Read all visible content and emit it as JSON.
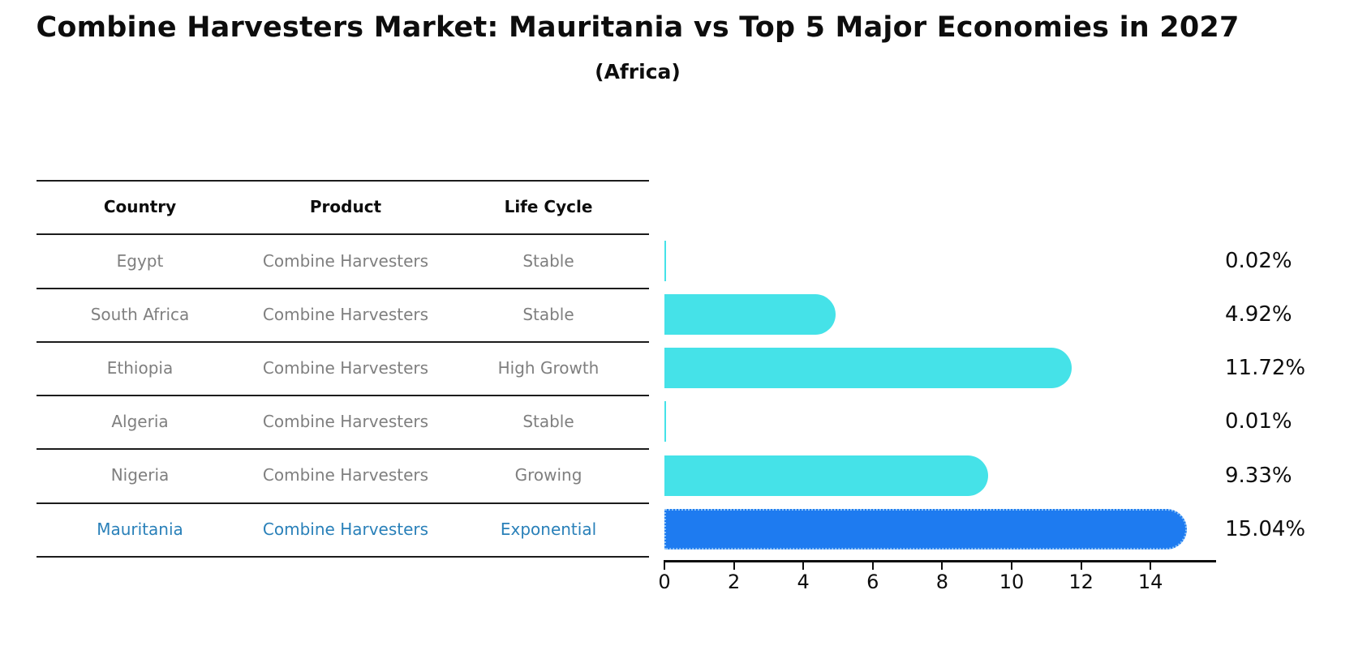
{
  "title": "Combine Harvesters Market: Mauritania vs Top 5 Major Economies in 2027",
  "subtitle": "(Africa)",
  "table": {
    "headers": [
      "Country",
      "Product",
      "Life Cycle"
    ],
    "rows": [
      {
        "country": "Egypt",
        "product": "Combine Harvesters",
        "life_cycle": "Stable",
        "highlight": false
      },
      {
        "country": "South Africa",
        "product": "Combine Harvesters",
        "life_cycle": "Stable",
        "highlight": false
      },
      {
        "country": "Ethiopia",
        "product": "Combine Harvesters",
        "life_cycle": "High Growth",
        "highlight": false
      },
      {
        "country": "Algeria",
        "product": "Combine Harvesters",
        "life_cycle": "Stable",
        "highlight": false
      },
      {
        "country": "Nigeria",
        "product": "Combine Harvesters",
        "life_cycle": "Growing",
        "highlight": false
      },
      {
        "country": "Mauritania",
        "product": "Combine Harvesters",
        "life_cycle": "Exponential",
        "highlight": true
      }
    ]
  },
  "chart_data": {
    "type": "bar",
    "orientation": "horizontal",
    "title": "Combine Harvesters Market: Mauritania vs Top 5 Major Economies in 2027 (Africa)",
    "categories": [
      "Egypt",
      "South Africa",
      "Ethiopia",
      "Algeria",
      "Nigeria",
      "Mauritania"
    ],
    "values": [
      0.02,
      4.92,
      11.72,
      0.01,
      9.33,
      15.04
    ],
    "value_labels": [
      "0.02%",
      "4.92%",
      "11.72%",
      "0.01%",
      "9.33%",
      "15.04%"
    ],
    "x_ticks": [
      0,
      2,
      4,
      6,
      8,
      10,
      12,
      14
    ],
    "xlim": [
      0,
      15.87
    ],
    "xlabel": "",
    "ylabel": "",
    "grid": false,
    "legend": false,
    "highlight_index": 5
  },
  "colors": {
    "bar": "#45e2e8",
    "highlight_bar": "#1e7bf0",
    "highlight_border": "#8cc3f8",
    "highlight_text": "#2980b9",
    "cell_text": "#7f7f7f",
    "header_text": "#0d0d0d",
    "line": "#1c1c1c"
  }
}
